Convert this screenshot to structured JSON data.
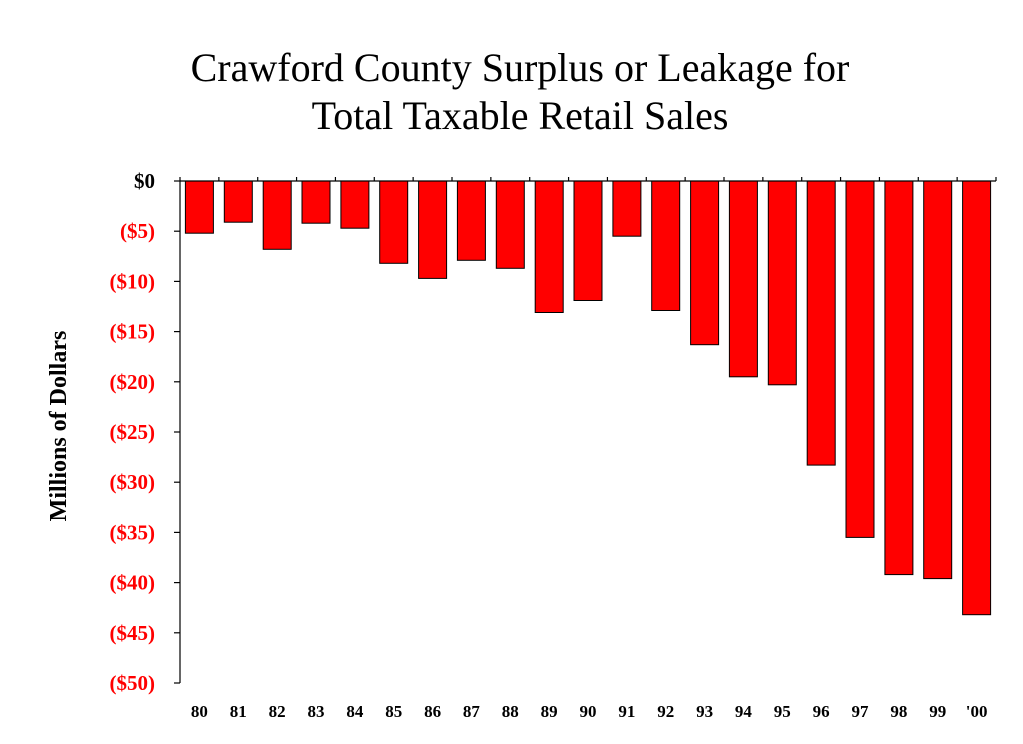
{
  "chart_data": {
    "type": "bar",
    "title_lines": [
      "Crawford County Surplus or Leakage for",
      "Total Taxable Retail Sales"
    ],
    "ylabel": "Millions of Dollars",
    "xlabel": "",
    "categories": [
      "80",
      "81",
      "82",
      "83",
      "84",
      "85",
      "86",
      "87",
      "88",
      "89",
      "90",
      "91",
      "92",
      "93",
      "94",
      "95",
      "96",
      "97",
      "98",
      "99",
      "'00"
    ],
    "values": [
      -5.2,
      -4.1,
      -6.8,
      -4.2,
      -4.7,
      -8.2,
      -9.7,
      -7.9,
      -8.7,
      -13.1,
      -11.9,
      -5.5,
      -12.9,
      -16.3,
      -19.5,
      -20.3,
      -28.3,
      -35.5,
      -39.2,
      -39.6,
      -43.2
    ],
    "ylim": [
      -50,
      0
    ],
    "yticks": [
      {
        "value": 0,
        "label": "$0"
      },
      {
        "value": -5,
        "label": "($5)"
      },
      {
        "value": -10,
        "label": "($10)"
      },
      {
        "value": -15,
        "label": "($15)"
      },
      {
        "value": -20,
        "label": "($20)"
      },
      {
        "value": -25,
        "label": "($25)"
      },
      {
        "value": -30,
        "label": "($30)"
      },
      {
        "value": -35,
        "label": "($35)"
      },
      {
        "value": -40,
        "label": "($40)"
      },
      {
        "value": -45,
        "label": "($45)"
      },
      {
        "value": -50,
        "label": "($50)"
      }
    ],
    "colors": {
      "bar": "#ff0000",
      "negative_label": "#ff0000",
      "zero_label": "#000000",
      "axis": "#000000"
    },
    "grid": false
  }
}
